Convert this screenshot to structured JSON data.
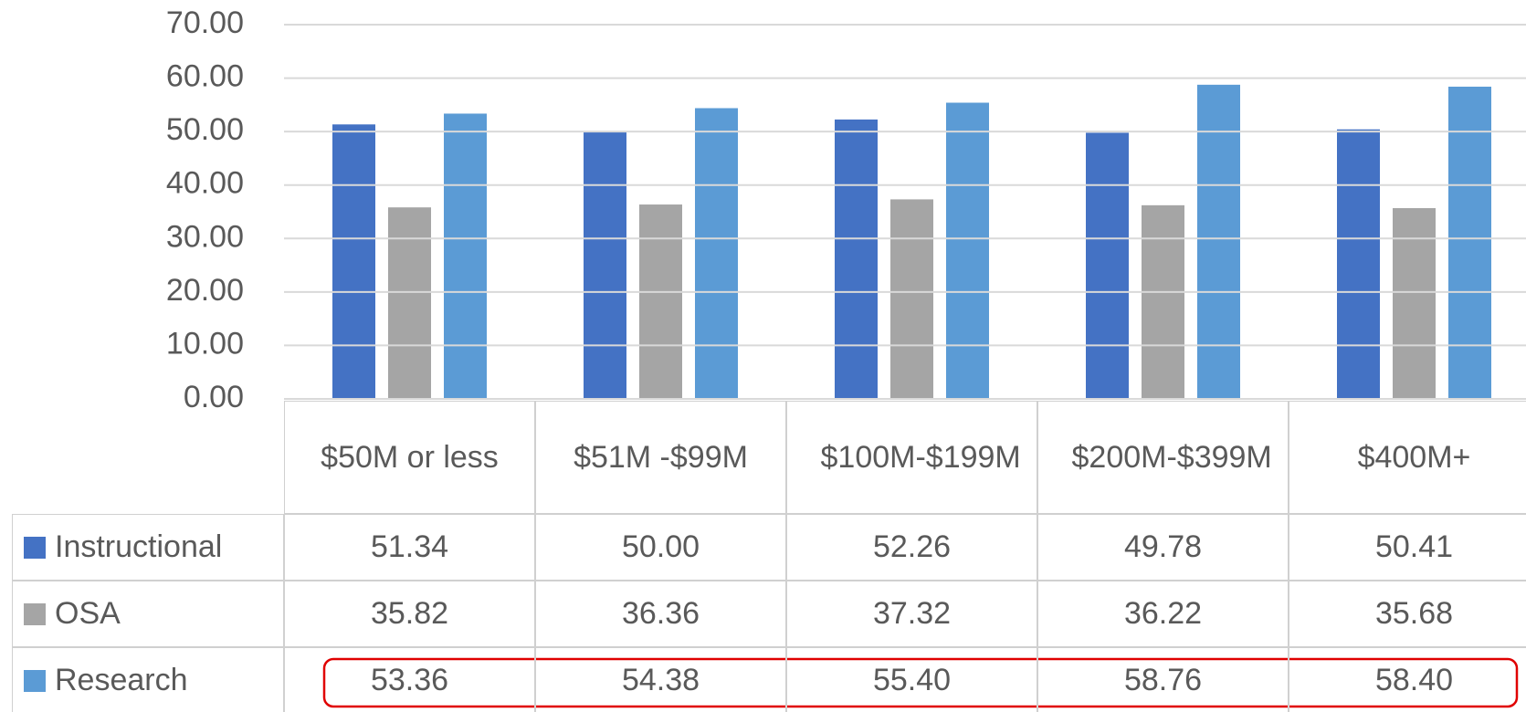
{
  "chart_data": {
    "type": "bar",
    "categories": [
      "$50M or less",
      "$51M -$99M",
      "$100M-$199M",
      "$200M-$399M",
      "$400M+"
    ],
    "series": [
      {
        "name": "Instructional",
        "color": "#4472c4",
        "values": [
          51.34,
          50.0,
          52.26,
          49.78,
          50.41
        ],
        "value_labels": [
          "51.34",
          "50.00",
          "52.26",
          "49.78",
          "50.41"
        ]
      },
      {
        "name": "OSA",
        "color": "#a5a5a5",
        "values": [
          35.82,
          36.36,
          37.32,
          36.22,
          35.68
        ],
        "value_labels": [
          "35.82",
          "36.36",
          "37.32",
          "36.22",
          "35.68"
        ]
      },
      {
        "name": "Research",
        "color": "#5b9bd5",
        "values": [
          53.36,
          54.38,
          55.4,
          58.76,
          58.4
        ],
        "value_labels": [
          "53.36",
          "54.38",
          "55.40",
          "58.76",
          "58.40"
        ]
      }
    ],
    "ylim": [
      0,
      70
    ],
    "yticks": [
      {
        "value": 0,
        "label": "0.00"
      },
      {
        "value": 10,
        "label": "10.00"
      },
      {
        "value": 20,
        "label": "20.00"
      },
      {
        "value": 30,
        "label": "30.00"
      },
      {
        "value": 40,
        "label": "40.00"
      },
      {
        "value": 50,
        "label": "50.00"
      },
      {
        "value": 60,
        "label": "60.00"
      },
      {
        "value": 70,
        "label": "70.00"
      }
    ],
    "grid": true
  }
}
